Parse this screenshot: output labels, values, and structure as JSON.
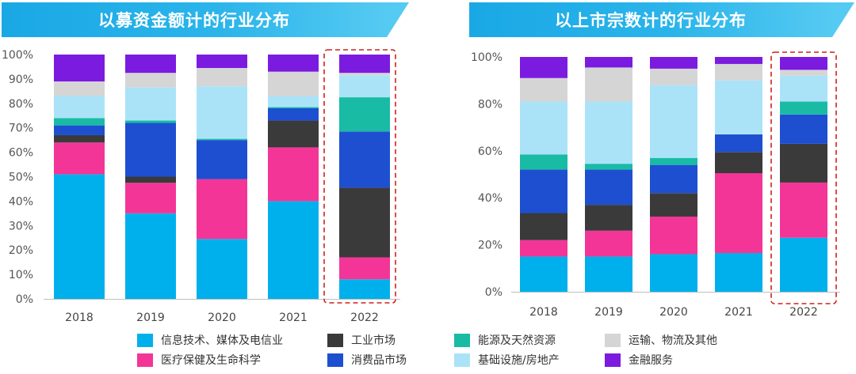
{
  "titles": {
    "left": "以募资金额计的行业分布",
    "right": "以上市宗数计的行业分布"
  },
  "legend": [
    {
      "name": "信息技术、媒体及电信业",
      "color": "#00b0ec"
    },
    {
      "name": "工业市场",
      "color": "#3a3a3a"
    },
    {
      "name": "能源及天然资源",
      "color": "#19bba5"
    },
    {
      "name": "运输、物流及其他",
      "color": "#d5d5d5"
    },
    {
      "name": "医疗保健及生命科学",
      "color": "#f33597"
    },
    {
      "name": "消费品市场",
      "color": "#1e4fd1"
    },
    {
      "name": "基础设施/房地产",
      "color": "#aae3f8"
    },
    {
      "name": "金融服务",
      "color": "#7b1be0"
    }
  ],
  "chart_data": [
    {
      "type": "bar",
      "stacked": true,
      "title": "以募资金额计的行业分布",
      "categories": [
        "2018",
        "2019",
        "2020",
        "2021",
        "2022"
      ],
      "highlight_category": "2022",
      "ylim": [
        0,
        100
      ],
      "yticks": [
        "0%",
        "10%",
        "20%",
        "30%",
        "40%",
        "50%",
        "60%",
        "70%",
        "80%",
        "90%",
        "100%"
      ],
      "series": [
        {
          "name": "信息技术、媒体及电信业",
          "values": [
            51,
            35,
            24.5,
            40,
            8
          ]
        },
        {
          "name": "医疗保健及生命科学",
          "values": [
            13,
            12.5,
            24.5,
            22,
            9
          ]
        },
        {
          "name": "工业市场",
          "values": [
            3,
            2.5,
            0,
            11,
            28.5
          ]
        },
        {
          "name": "消费品市场",
          "values": [
            4,
            22,
            16,
            5,
            23
          ]
        },
        {
          "name": "能源及天然资源",
          "values": [
            3,
            1,
            0.5,
            0.5,
            14
          ]
        },
        {
          "name": "基础设施/房地产",
          "values": [
            9,
            13.5,
            21.5,
            4.5,
            9
          ]
        },
        {
          "name": "运输、物流及其他",
          "values": [
            6,
            6,
            7.5,
            10,
            1
          ]
        },
        {
          "name": "金融服务",
          "values": [
            11,
            7.5,
            5.5,
            7,
            7.5
          ]
        }
      ]
    },
    {
      "type": "bar",
      "stacked": true,
      "title": "以上市宗数计的行业分布",
      "categories": [
        "2018",
        "2019",
        "2020",
        "2021",
        "2022"
      ],
      "highlight_category": "2022",
      "ylim": [
        0,
        100
      ],
      "yticks": [
        "0%",
        "20%",
        "40%",
        "60%",
        "80%",
        "100%"
      ],
      "series": [
        {
          "name": "信息技术、媒体及电信业",
          "values": [
            15,
            15,
            16,
            16.5,
            23
          ]
        },
        {
          "name": "医疗保健及生命科学",
          "values": [
            7,
            11,
            16,
            34,
            23.5
          ]
        },
        {
          "name": "工业市场",
          "values": [
            11.5,
            11,
            10,
            9,
            16.5
          ]
        },
        {
          "name": "消费品市场",
          "values": [
            18.5,
            15,
            12,
            7.5,
            12.5
          ]
        },
        {
          "name": "能源及天然资源",
          "values": [
            6.5,
            2.5,
            3,
            0,
            5.5
          ]
        },
        {
          "name": "基础设施/房地产",
          "values": [
            22.5,
            26.5,
            31,
            23,
            11
          ]
        },
        {
          "name": "运输、物流及其他",
          "values": [
            10,
            14.5,
            7,
            7,
            2.5
          ]
        },
        {
          "name": "金融服务",
          "values": [
            9,
            4.5,
            5,
            3,
            5.5
          ]
        }
      ]
    }
  ]
}
